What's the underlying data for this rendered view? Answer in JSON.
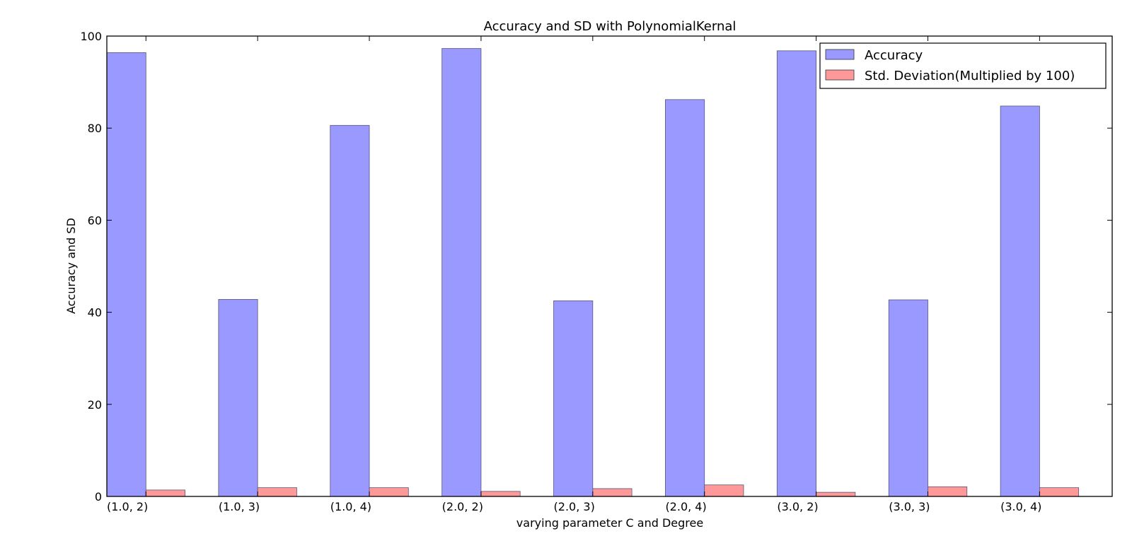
{
  "chart_data": {
    "type": "bar",
    "title": "Accuracy and SD with PolynomialKernal",
    "xlabel": "varying  parameter C and Degree",
    "ylabel": "Accuracy and SD",
    "ylim": [
      0,
      100
    ],
    "yticks": [
      "0",
      "20",
      "40",
      "60",
      "80",
      "100"
    ],
    "categories": [
      "(1.0, 2)",
      "(1.0, 3)",
      "(1.0, 4)",
      "(2.0, 2)",
      "(2.0, 3)",
      "(2.0, 4)",
      "(3.0, 2)",
      "(3.0, 3)",
      "(3.0, 4)"
    ],
    "series": [
      {
        "name": "Accuracy",
        "color": "#9999ff",
        "values": [
          96.4,
          42.8,
          80.6,
          97.3,
          42.5,
          86.2,
          96.8,
          42.7,
          84.8
        ]
      },
      {
        "name": "Std. Deviation(Multiplied by 100)",
        "color": "#ff9999",
        "values": [
          1.4,
          1.9,
          1.9,
          1.1,
          1.7,
          2.5,
          0.9,
          2.1,
          1.9
        ]
      }
    ],
    "grid": false,
    "legend_position": "top-right"
  }
}
